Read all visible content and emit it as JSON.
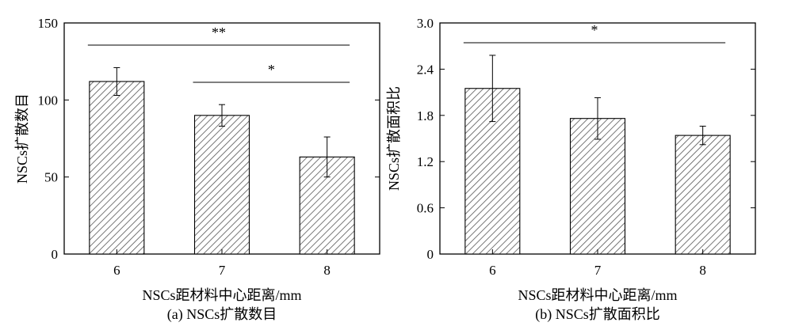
{
  "chart_data": [
    {
      "type": "bar",
      "panel_caption": "(a) NSCs扩散数目",
      "xlabel": "NSCs距材料中心距离/mm",
      "ylabel": "NSCs扩散数目",
      "categories": [
        "6",
        "7",
        "8"
      ],
      "values": [
        112,
        90,
        63
      ],
      "errors": [
        9,
        7,
        13
      ],
      "ylim": [
        0,
        150
      ],
      "yticks": [
        "0",
        "50",
        "100",
        "150"
      ],
      "bar_pattern": "diagonal-hatch",
      "significance": [
        {
          "from": "6",
          "to": "8",
          "label": "**"
        },
        {
          "from": "7",
          "to": "8",
          "label": "*"
        }
      ]
    },
    {
      "type": "bar",
      "panel_caption": "(b) NSCs扩散面积比",
      "xlabel": "NSCs距材料中心距离/mm",
      "ylabel": "NSCs扩散面积比",
      "categories": [
        "6",
        "7",
        "8"
      ],
      "values": [
        2.15,
        1.76,
        1.54
      ],
      "errors": [
        0.43,
        0.27,
        0.12
      ],
      "ylim": [
        0,
        3.0
      ],
      "yticks": [
        "0",
        "0.6",
        "1.2",
        "1.8",
        "2.4",
        "3.0"
      ],
      "bar_pattern": "diagonal-hatch",
      "significance": [
        {
          "from": "6",
          "to": "8",
          "label": "*"
        }
      ]
    }
  ]
}
